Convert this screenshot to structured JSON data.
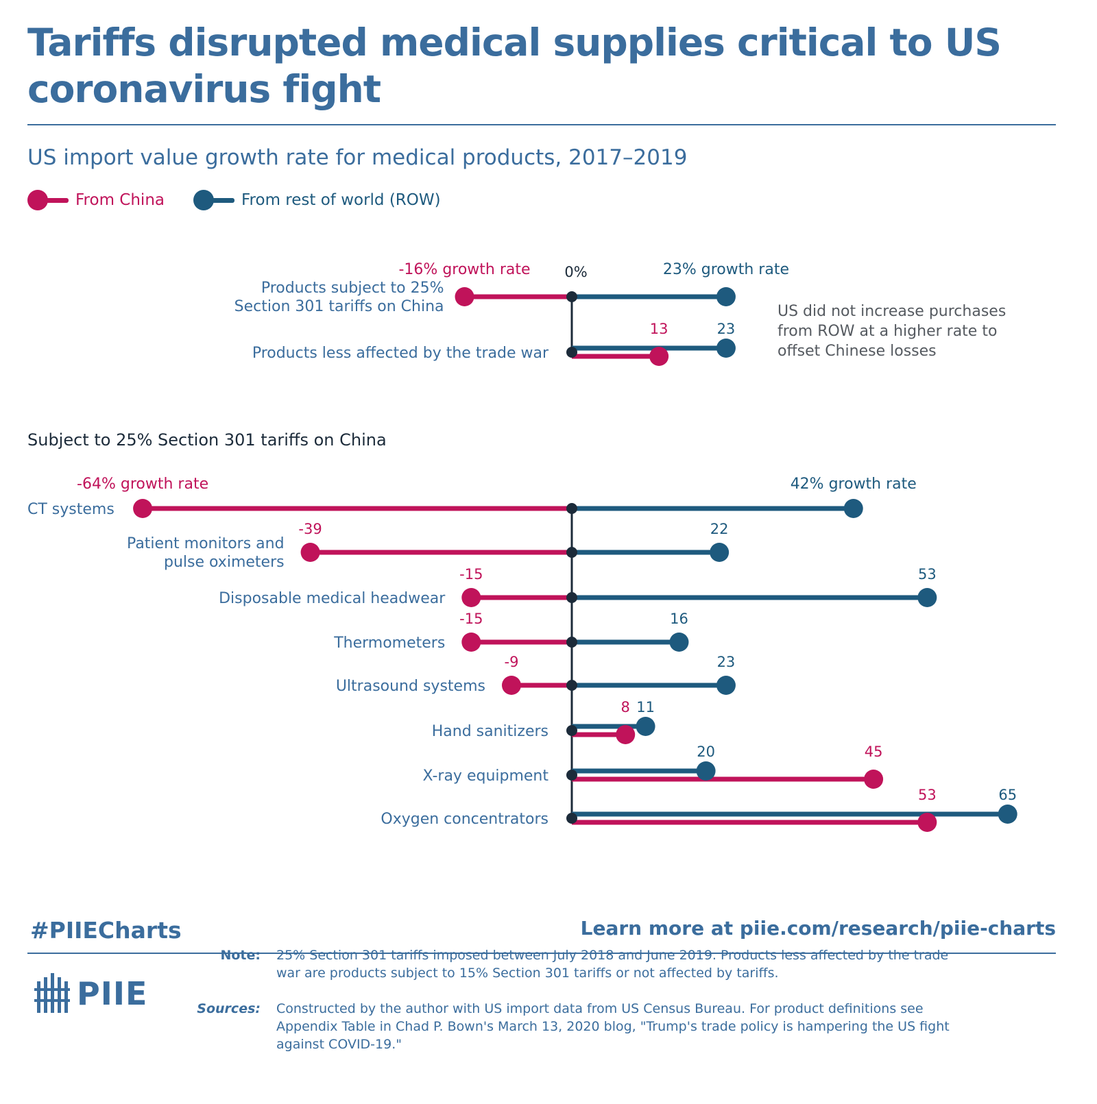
{
  "title": "Tariffs disrupted medical supplies critical to US coronavirus fight",
  "subtitle": "US import value growth rate for medical products, 2017–2019",
  "legend": {
    "china": "From China",
    "row": "From rest of world (ROW)"
  },
  "colors": {
    "china": "#c0135a",
    "row": "#1e5a7e",
    "axis": "#1c2b3a",
    "label": "#3b6d9d",
    "accent": "#3b6d9d"
  },
  "top_chart": {
    "axis_label": "0%",
    "china_header": "-16% growth rate",
    "row_header": "23% growth rate",
    "annotation": [
      "US did not increase purchases",
      "from ROW at a higher rate to",
      "offset Chinese losses"
    ]
  },
  "bottom_chart": {
    "section_title": "Subject to 25% Section 301 tariffs on China",
    "china_header": "-64% growth rate",
    "row_header": "42% growth rate"
  },
  "chart_data": [
    {
      "type": "dumbbell",
      "title": "",
      "categories": [
        [
          "Products subject to 25%",
          "Section 301 tariffs on China"
        ],
        [
          "Products less affected by the trade war"
        ]
      ],
      "series": [
        {
          "name": "From China",
          "values": [
            -16,
            13
          ],
          "labels": [
            "",
            "13"
          ]
        },
        {
          "name": "From rest of world (ROW)",
          "values": [
            23,
            23
          ],
          "labels": [
            "",
            "23"
          ]
        }
      ]
    },
    {
      "type": "dumbbell",
      "title": "Subject to 25% Section 301 tariffs on China",
      "categories": [
        [
          "CT systems"
        ],
        [
          "Patient monitors and",
          "pulse oximeters"
        ],
        [
          "Disposable medical headwear"
        ],
        [
          "Thermometers"
        ],
        [
          "Ultrasound systems"
        ],
        [
          "Hand sanitizers"
        ],
        [
          "X-ray equipment"
        ],
        [
          "Oxygen concentrators"
        ]
      ],
      "series": [
        {
          "name": "From China",
          "values": [
            -64,
            -39,
            -15,
            -15,
            -9,
            8,
            45,
            53
          ],
          "labels": [
            "",
            "-39",
            "-15",
            "-15",
            "-9",
            "8",
            "45",
            "53"
          ]
        },
        {
          "name": "From rest of world (ROW)",
          "values": [
            42,
            22,
            53,
            16,
            23,
            11,
            20,
            65
          ],
          "labels": [
            "",
            "22",
            "53",
            "16",
            "23",
            "11",
            "20",
            "65"
          ]
        }
      ]
    }
  ],
  "footer": {
    "hashtag": "#PIIECharts",
    "link": "Learn more at piie.com/research/piie-charts",
    "logo_text": "PIIE",
    "note_label": "Note:",
    "note_lines": [
      "25% Section 301 tariffs imposed between July 2018 and June 2019. Products less affected by the trade",
      "war are products subject to 15% Section 301 tariffs or not affected by tariffs."
    ],
    "sources_label": "Sources:",
    "sources_lines": [
      "Constructed by the author with US import data from US Census Bureau. For product definitions see",
      "Appendix Table in Chad P. Bown's March 13, 2020 blog, \"Trump's trade policy is hampering the US fight",
      "against COVID-19.\""
    ]
  }
}
